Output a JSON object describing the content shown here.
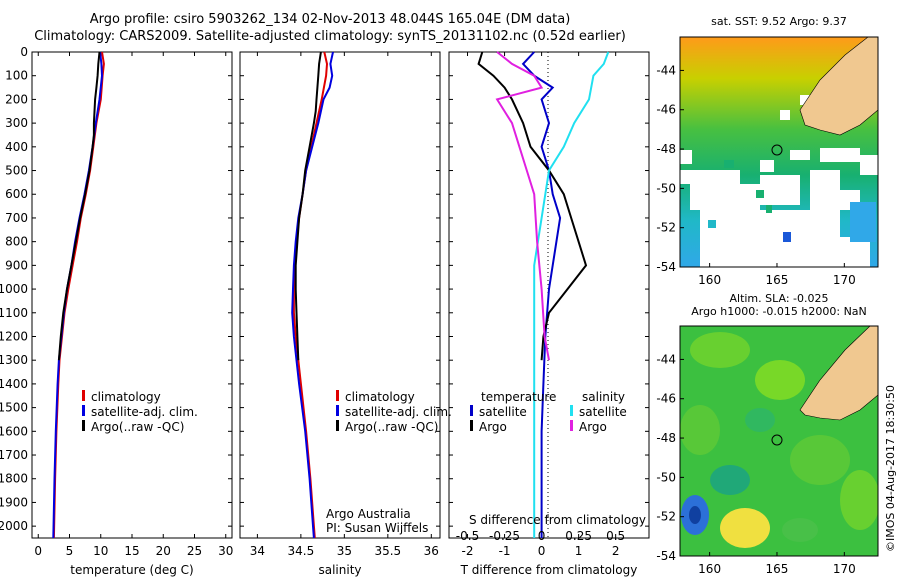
{
  "header": {
    "title_line1": "Argo profile: csiro 5903262_134 02-Nov-2013 48.044S 165.04E (DM data)",
    "title_line2": "Climatology: CARS2009. Satellite-adjusted climatology: synTS_20131102.nc (0.52d earlier)"
  },
  "colors": {
    "climatology": "#e00000",
    "satellite_adj": "#0000e0",
    "argo": "#000000",
    "temperature_satellite": "#0000c8",
    "salinity_satellite": "#20e0f0",
    "salinity_argo": "#e020e0",
    "land": "#f0c890"
  },
  "chart_data": [
    {
      "type": "line",
      "name": "temperature-profile",
      "xlabel": "temperature (deg C)",
      "ylabel": "",
      "xlim": [
        -1,
        31
      ],
      "ylim": [
        2050,
        0
      ],
      "xticks": [
        0,
        5,
        10,
        15,
        20,
        25,
        30
      ],
      "yticks": [
        0,
        100,
        200,
        300,
        400,
        500,
        600,
        700,
        800,
        900,
        1000,
        1100,
        1200,
        1300,
        1400,
        1500,
        1600,
        1700,
        1800,
        1900,
        2000
      ],
      "legend": [
        "climatology",
        "satellite-adj. clim.",
        "Argo(..raw -QC)"
      ],
      "series": [
        {
          "name": "climatology",
          "depth": [
            0,
            50,
            100,
            200,
            300,
            400,
            500,
            600,
            700,
            800,
            900,
            1000,
            1100,
            1200,
            1300,
            1400,
            1600,
            1800,
            2050
          ],
          "values": [
            10.2,
            10.5,
            10.3,
            10.0,
            9.3,
            8.8,
            8.3,
            7.6,
            6.8,
            6.2,
            5.5,
            4.8,
            4.2,
            3.8,
            3.4,
            3.2,
            2.9,
            2.7,
            2.5
          ]
        },
        {
          "name": "satellite-adj. clim.",
          "depth": [
            0,
            50,
            100,
            200,
            300,
            400,
            500,
            600,
            700,
            800,
            900,
            1000,
            1100,
            1200,
            1300,
            1400,
            1600,
            1800,
            2050
          ],
          "values": [
            9.9,
            10.1,
            10.2,
            9.8,
            9.2,
            8.7,
            8.1,
            7.4,
            6.6,
            5.9,
            5.3,
            4.6,
            4.1,
            3.7,
            3.3,
            3.1,
            2.8,
            2.6,
            2.4
          ]
        },
        {
          "name": "Argo(..raw -QC)",
          "depth": [
            0,
            50,
            100,
            150,
            200,
            250,
            300,
            350,
            400,
            500,
            600,
            700,
            800,
            900,
            1000,
            1100,
            1200,
            1300
          ],
          "values": [
            9.8,
            9.6,
            9.5,
            9.3,
            9.1,
            9.0,
            8.9,
            8.9,
            8.7,
            8.2,
            7.5,
            6.7,
            6.0,
            5.3,
            4.6,
            4.0,
            3.6,
            3.3
          ]
        }
      ]
    },
    {
      "type": "line",
      "name": "salinity-profile",
      "xlabel": "salinity",
      "ylabel": "",
      "xlim": [
        33.8,
        36.1
      ],
      "ylim": [
        2050,
        0
      ],
      "xticks": [
        34,
        34.5,
        35,
        35.5,
        36
      ],
      "legend": [
        "climatology",
        "satellite-adj. clim.",
        "Argo(..raw -QC)"
      ],
      "annotation": [
        "Argo Australia",
        "PI: Susan Wijffels"
      ],
      "series": [
        {
          "name": "climatology",
          "depth": [
            0,
            50,
            100,
            200,
            300,
            400,
            500,
            600,
            700,
            800,
            900,
            1000,
            1100,
            1200,
            1400,
            1600,
            1800,
            2000,
            2050
          ],
          "values": [
            34.77,
            34.8,
            34.79,
            34.74,
            34.68,
            34.62,
            34.56,
            34.52,
            34.48,
            34.45,
            34.43,
            34.42,
            34.42,
            34.44,
            34.5,
            34.56,
            34.61,
            34.65,
            34.66
          ]
        },
        {
          "name": "satellite-adj. clim.",
          "depth": [
            0,
            50,
            100,
            150,
            200,
            300,
            400,
            500,
            600,
            700,
            800,
            900,
            1000,
            1100,
            1200,
            1400,
            1600,
            1800,
            2000,
            2050
          ],
          "values": [
            34.87,
            34.84,
            34.86,
            34.83,
            34.76,
            34.7,
            34.63,
            34.56,
            34.52,
            34.47,
            34.44,
            34.42,
            34.41,
            34.4,
            34.42,
            34.48,
            34.55,
            34.6,
            34.64,
            34.65
          ]
        },
        {
          "name": "Argo(..raw -QC)",
          "depth": [
            0,
            50,
            100,
            150,
            200,
            250,
            300,
            400,
            500,
            600,
            700,
            800,
            900,
            1000,
            1100,
            1200,
            1300
          ],
          "values": [
            34.73,
            34.71,
            34.7,
            34.69,
            34.68,
            34.67,
            34.65,
            34.6,
            34.55,
            34.52,
            34.48,
            34.46,
            34.44,
            34.44,
            34.45,
            34.46,
            34.47
          ]
        }
      ]
    },
    {
      "type": "line",
      "name": "difference-profile",
      "xlabel": "T difference from climatology",
      "xlabel2": "S difference from climatology",
      "xlim": [
        -2.5,
        2.9
      ],
      "ylim": [
        2050,
        0
      ],
      "xticks": [
        -2,
        -1,
        0,
        1,
        2
      ],
      "xticks2_labels": [
        "-0.5",
        "-0.25",
        "0",
        "0.25",
        "0.5"
      ],
      "legend_temperature": [
        "temperature",
        "satellite",
        "Argo"
      ],
      "legend_salinity": [
        "salinity",
        "satellite",
        "Argo"
      ],
      "series": [
        {
          "name": "temperature satellite",
          "depth": [
            0,
            50,
            100,
            150,
            200,
            300,
            400,
            500,
            600,
            700,
            800,
            900,
            1000,
            1200,
            1400,
            1600,
            1800,
            2050
          ],
          "values": [
            -0.2,
            -0.5,
            -0.2,
            0.3,
            0.0,
            0.2,
            0.0,
            0.2,
            0.3,
            0.5,
            0.4,
            0.3,
            0.2,
            0.1,
            0.05,
            0.0,
            0.0,
            0.0
          ]
        },
        {
          "name": "temperature Argo",
          "depth": [
            0,
            50,
            100,
            150,
            200,
            300,
            400,
            500,
            600,
            700,
            800,
            900,
            1000,
            1100,
            1200,
            1300
          ],
          "values": [
            -1.6,
            -1.7,
            -1.3,
            -1.0,
            -0.8,
            -0.5,
            -0.3,
            0.2,
            0.6,
            0.8,
            1.0,
            1.2,
            0.7,
            0.2,
            0.05,
            0.0
          ]
        },
        {
          "name": "salinity satellite",
          "depth": [
            0,
            50,
            100,
            200,
            300,
            400,
            500,
            700,
            900,
            1200,
            1500,
            1800,
            2050
          ],
          "values": [
            0.45,
            0.42,
            0.35,
            0.32,
            0.22,
            0.15,
            0.05,
            0.0,
            -0.05,
            -0.05,
            -0.05,
            -0.05,
            -0.05
          ]
        },
        {
          "name": "salinity Argo",
          "depth": [
            0,
            50,
            100,
            150,
            200,
            300,
            400,
            500,
            600,
            800,
            1000,
            1200,
            1300
          ],
          "values": [
            -0.3,
            -0.2,
            -0.05,
            0.0,
            -0.3,
            -0.2,
            -0.15,
            -0.1,
            -0.05,
            -0.03,
            0.0,
            0.02,
            0.05
          ]
        }
      ]
    },
    {
      "type": "heatmap",
      "name": "sst-map",
      "title": "sat. SST: 9.52  Argo: 9.37",
      "xticks": [
        160,
        165,
        170
      ],
      "yticks": [
        -44,
        -46,
        -48,
        -50,
        -52,
        -54
      ],
      "float_position": [
        165.04,
        -48.044
      ]
    },
    {
      "type": "heatmap",
      "name": "sla-map",
      "title_line1": "Altim. SLA: -0.025",
      "title_line2": "Argo h1000: -0.015 h2000: NaN",
      "xticks": [
        160,
        165,
        170
      ],
      "yticks": [
        -44,
        -46,
        -48,
        -50,
        -52,
        -54
      ],
      "float_position": [
        165.04,
        -48.044
      ]
    }
  ],
  "footer": {
    "stamp": "©IMOS 04-Aug-2017 18:30:50"
  }
}
